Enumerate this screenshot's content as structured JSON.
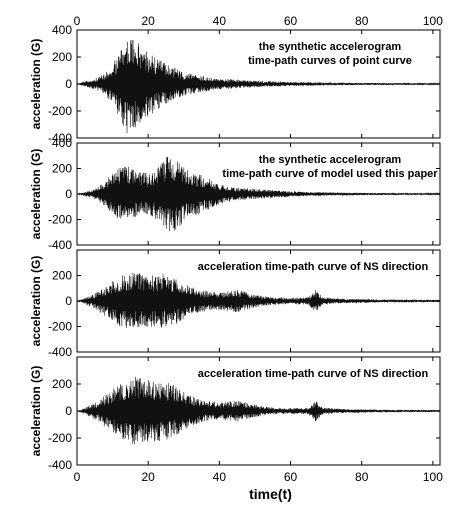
{
  "chart_data": {
    "type": "line",
    "xlabel": "time(t)",
    "x_ticks": [
      0,
      20,
      40,
      60,
      80,
      100
    ],
    "xlim": [
      0,
      102
    ],
    "grid": false,
    "panels": [
      {
        "ylabel": "acceleration  (G)",
        "y_ticks": [
          400,
          200,
          0,
          -200,
          -400
        ],
        "ylim": [
          -400,
          400
        ],
        "annotation": [
          "the synthetic accelerogram",
          "time-path curves of point curve"
        ],
        "series": [
          {
            "t": 2,
            "amp": 20
          },
          {
            "t": 5,
            "amp": 40
          },
          {
            "t": 8,
            "amp": 80
          },
          {
            "t": 10,
            "amp": 150
          },
          {
            "t": 12,
            "amp": 250
          },
          {
            "t": 14,
            "amp": 380
          },
          {
            "t": 16,
            "amp": 330
          },
          {
            "t": 18,
            "amp": 300
          },
          {
            "t": 20,
            "amp": 250
          },
          {
            "t": 22,
            "amp": 200
          },
          {
            "t": 25,
            "amp": 150
          },
          {
            "t": 30,
            "amp": 90
          },
          {
            "t": 35,
            "amp": 60
          },
          {
            "t": 40,
            "amp": 40
          },
          {
            "t": 50,
            "amp": 25
          },
          {
            "t": 60,
            "amp": 15
          },
          {
            "t": 80,
            "amp": 8
          },
          {
            "t": 100,
            "amp": 5
          }
        ]
      },
      {
        "ylabel": "acceleration  (G)",
        "y_ticks": [
          400,
          200,
          0,
          -200,
          -400
        ],
        "ylim": [
          -400,
          400
        ],
        "annotation": [
          "the synthetic accelerogram",
          "time-path curve of model used this paper"
        ],
        "series": [
          {
            "t": 2,
            "amp": 15
          },
          {
            "t": 5,
            "amp": 40
          },
          {
            "t": 8,
            "amp": 100
          },
          {
            "t": 11,
            "amp": 200
          },
          {
            "t": 14,
            "amp": 220
          },
          {
            "t": 17,
            "amp": 180
          },
          {
            "t": 20,
            "amp": 160
          },
          {
            "t": 23,
            "amp": 220
          },
          {
            "t": 26,
            "amp": 320
          },
          {
            "t": 28,
            "amp": 280
          },
          {
            "t": 31,
            "amp": 200
          },
          {
            "t": 35,
            "amp": 150
          },
          {
            "t": 40,
            "amp": 80
          },
          {
            "t": 45,
            "amp": 50
          },
          {
            "t": 55,
            "amp": 30
          },
          {
            "t": 65,
            "amp": 15
          },
          {
            "t": 80,
            "amp": 10
          },
          {
            "t": 100,
            "amp": 5
          }
        ]
      },
      {
        "ylabel": "acceleration  (G)",
        "y_ticks": [
          200,
          0,
          -200,
          -400
        ],
        "ylim": [
          -400,
          400
        ],
        "annotation": [
          "acceleration time-path curve of NS direction"
        ],
        "series": [
          {
            "t": 2,
            "amp": 20
          },
          {
            "t": 5,
            "amp": 60
          },
          {
            "t": 8,
            "amp": 120
          },
          {
            "t": 12,
            "amp": 200
          },
          {
            "t": 16,
            "amp": 230
          },
          {
            "t": 20,
            "amp": 200
          },
          {
            "t": 24,
            "amp": 220
          },
          {
            "t": 28,
            "amp": 180
          },
          {
            "t": 32,
            "amp": 110
          },
          {
            "t": 36,
            "amp": 80
          },
          {
            "t": 40,
            "amp": 70
          },
          {
            "t": 45,
            "amp": 90
          },
          {
            "t": 50,
            "amp": 50
          },
          {
            "t": 55,
            "amp": 30
          },
          {
            "t": 60,
            "amp": 25
          },
          {
            "t": 65,
            "amp": 30
          },
          {
            "t": 67,
            "amp": 90
          },
          {
            "t": 69,
            "amp": 30
          },
          {
            "t": 75,
            "amp": 18
          },
          {
            "t": 85,
            "amp": 12
          },
          {
            "t": 100,
            "amp": 10
          }
        ]
      },
      {
        "ylabel": "acceleration  (G)",
        "y_ticks": [
          200,
          0,
          -200,
          -400
        ],
        "ylim": [
          -400,
          400
        ],
        "annotation": [
          "acceleration time-path curve of NS direction"
        ],
        "series": [
          {
            "t": 2,
            "amp": 20
          },
          {
            "t": 5,
            "amp": 60
          },
          {
            "t": 8,
            "amp": 120
          },
          {
            "t": 12,
            "amp": 200
          },
          {
            "t": 16,
            "amp": 260
          },
          {
            "t": 20,
            "amp": 240
          },
          {
            "t": 24,
            "amp": 220
          },
          {
            "t": 28,
            "amp": 190
          },
          {
            "t": 32,
            "amp": 110
          },
          {
            "t": 36,
            "amp": 80
          },
          {
            "t": 40,
            "amp": 60
          },
          {
            "t": 45,
            "amp": 80
          },
          {
            "t": 50,
            "amp": 45
          },
          {
            "t": 55,
            "amp": 25
          },
          {
            "t": 60,
            "amp": 20
          },
          {
            "t": 65,
            "amp": 25
          },
          {
            "t": 67,
            "amp": 80
          },
          {
            "t": 69,
            "amp": 25
          },
          {
            "t": 75,
            "amp": 15
          },
          {
            "t": 85,
            "amp": 10
          },
          {
            "t": 100,
            "amp": 8
          }
        ]
      }
    ]
  }
}
